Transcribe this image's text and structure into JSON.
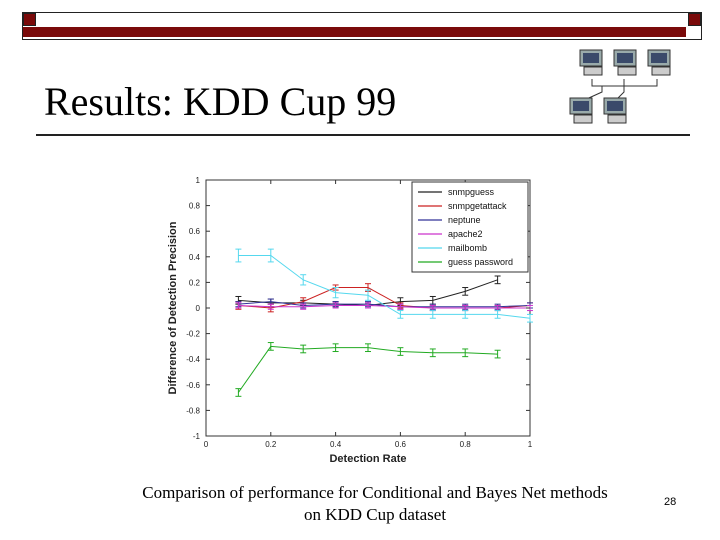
{
  "slide": {
    "title": "Results: KDD Cup 99",
    "caption_line1": "Comparison of performance for Conditional and Bayes Net methods",
    "caption_line2": "on KDD Cup dataset",
    "page_number": "28"
  },
  "colors": {
    "title_bar_accent": "#7a0a0a"
  },
  "network_icon": "computer-network-icon",
  "chart_data": {
    "type": "line",
    "xlabel": "Detection Rate",
    "ylabel": "Difference of Detection Precision",
    "xlim": [
      0,
      1
    ],
    "ylim": [
      -1,
      1
    ],
    "xticks": [
      "0",
      "0.2",
      "0.4",
      "0.6",
      "0.8",
      "1"
    ],
    "yticks": [
      "1",
      "0.8",
      "0.6",
      "0.4",
      "0.2",
      "0",
      "-0.2",
      "-0.4",
      "-0.6",
      "-0.8",
      "-1"
    ],
    "legend_position": "top-right",
    "grid": false,
    "series": [
      {
        "name": "snmpguess",
        "color": "#222222",
        "x": [
          0.1,
          0.2,
          0.3,
          0.4,
          0.5,
          0.6,
          0.7,
          0.8,
          0.9
        ],
        "y": [
          0.06,
          0.04,
          0.04,
          0.03,
          0.02,
          0.05,
          0.06,
          0.13,
          0.22
        ],
        "err": [
          0.03,
          0.03,
          0.02,
          0.02,
          0.02,
          0.03,
          0.03,
          0.03,
          0.03
        ]
      },
      {
        "name": "snmpgetattack",
        "color": "#cc2222",
        "x": [
          0.1,
          0.2,
          0.3,
          0.4,
          0.5,
          0.6,
          0.7,
          0.8,
          0.9,
          1.0
        ],
        "y": [
          0.02,
          0.0,
          0.05,
          0.16,
          0.16,
          0.02,
          0.0,
          0.0,
          0.0,
          0.02
        ],
        "err": [
          0.03,
          0.03,
          0.03,
          0.02,
          0.03,
          0.02,
          0.02,
          0.02,
          0.02,
          0.02
        ]
      },
      {
        "name": "neptune",
        "color": "#333399",
        "x": [
          0.1,
          0.2,
          0.3,
          0.4,
          0.5,
          0.6,
          0.7,
          0.8,
          0.9,
          1.0
        ],
        "y": [
          0.03,
          0.05,
          0.02,
          0.03,
          0.03,
          0.01,
          0.01,
          0.01,
          0.01,
          0.02
        ],
        "err": [
          0.02,
          0.02,
          0.02,
          0.02,
          0.02,
          0.02,
          0.02,
          0.02,
          0.02,
          0.02
        ]
      },
      {
        "name": "apache2",
        "color": "#cc33cc",
        "x": [
          0.1,
          0.2,
          0.3,
          0.4,
          0.5,
          0.6,
          0.7,
          0.8,
          0.9,
          1.0
        ],
        "y": [
          0.02,
          0.01,
          0.01,
          0.02,
          0.02,
          0.01,
          0.0,
          0.0,
          0.0,
          0.0
        ],
        "err": [
          0.02,
          0.02,
          0.02,
          0.02,
          0.02,
          0.02,
          0.02,
          0.02,
          0.02,
          0.02
        ]
      },
      {
        "name": "mailbomb",
        "color": "#55d8ee",
        "x": [
          0.1,
          0.2,
          0.3,
          0.4,
          0.5,
          0.6,
          0.7,
          0.8,
          0.9,
          1.0
        ],
        "y": [
          0.41,
          0.41,
          0.22,
          0.12,
          0.1,
          -0.05,
          -0.05,
          -0.05,
          -0.05,
          -0.08
        ],
        "err": [
          0.05,
          0.05,
          0.04,
          0.04,
          0.04,
          0.03,
          0.03,
          0.03,
          0.03,
          0.03
        ]
      },
      {
        "name": "guess password",
        "color": "#22aa22",
        "x": [
          0.1,
          0.2,
          0.3,
          0.4,
          0.5,
          0.6,
          0.7,
          0.8,
          0.9
        ],
        "y": [
          -0.66,
          -0.3,
          -0.32,
          -0.31,
          -0.31,
          -0.34,
          -0.35,
          -0.35,
          -0.36
        ],
        "err": [
          0.03,
          0.03,
          0.03,
          0.03,
          0.03,
          0.03,
          0.03,
          0.03,
          0.03
        ]
      }
    ]
  }
}
